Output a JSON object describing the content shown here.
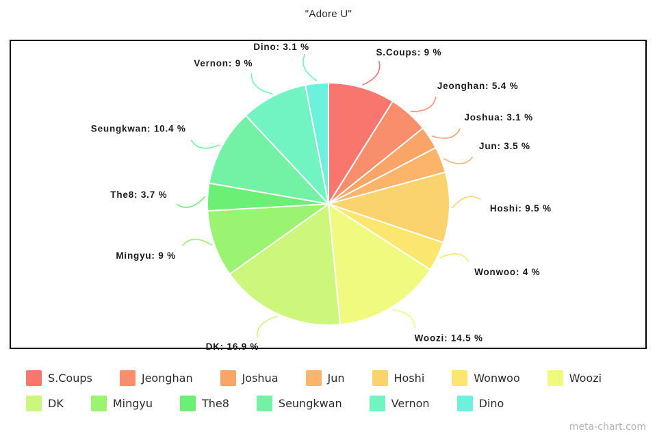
{
  "title": "\"Adore U\"",
  "watermark": "meta-chart.com",
  "chart_data": {
    "type": "pie",
    "title": "\"Adore U\"",
    "unit": "%",
    "start_angle_deg": 0,
    "direction": "clockwise",
    "legend_position": "bottom",
    "callout_labels": true,
    "slices": [
      {
        "name": "S.Coups",
        "value": 9,
        "callout": "S.Coups: 9 %",
        "color": "#F9766F"
      },
      {
        "name": "Jeonghan",
        "value": 5.4,
        "callout": "Jeonghan: 5.4 %",
        "color": "#F98E6D"
      },
      {
        "name": "Joshua",
        "value": 3.1,
        "callout": "Joshua: 3.1 %",
        "color": "#FAA568"
      },
      {
        "name": "Jun",
        "value": 3.5,
        "callout": "Jun: 3.5 %",
        "color": "#FBB46A"
      },
      {
        "name": "Hoshi",
        "value": 9.5,
        "callout": "Hoshi: 9.5 %",
        "color": "#FAD36E"
      },
      {
        "name": "Wonwoo",
        "value": 4,
        "callout": "Wonwoo: 4 %",
        "color": "#FBE76F"
      },
      {
        "name": "Woozi",
        "value": 14.5,
        "callout": "Woozi: 14.5 %",
        "color": "#F0FA7F"
      },
      {
        "name": "DK",
        "value": 16.9,
        "callout": "DK: 16.9 %",
        "color": "#CDF67C"
      },
      {
        "name": "Mingyu",
        "value": 9,
        "callout": "Mingyu: 9 %",
        "color": "#9AF471"
      },
      {
        "name": "The8",
        "value": 3.7,
        "callout": "The8: 3.7 %",
        "color": "#6BF075"
      },
      {
        "name": "Seungkwan",
        "value": 10.4,
        "callout": "Seungkwan: 10.4 %",
        "color": "#73F2A5"
      },
      {
        "name": "Vernon",
        "value": 9,
        "callout": "Vernon: 9 %",
        "color": "#72F3C2"
      },
      {
        "name": "Dino",
        "value": 3.1,
        "callout": "Dino: 3.1 %",
        "color": "#6CF1DD"
      }
    ],
    "legend_rows": [
      7,
      6
    ]
  }
}
